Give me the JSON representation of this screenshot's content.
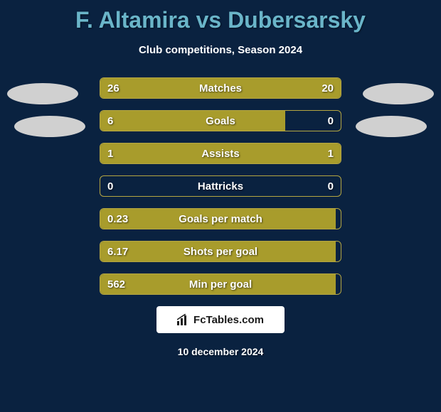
{
  "title": "F. Altamira vs Dubersarsky",
  "subtitle": "Club competitions, Season 2024",
  "colors": {
    "background": "#0a2240",
    "title_color": "#6ab5c9",
    "bar_fill": "#a89c2c",
    "bar_border": "#b5a642",
    "ellipse": "#d0d0d0",
    "text": "#ffffff"
  },
  "stats": [
    {
      "label": "Matches",
      "left_value": "26",
      "right_value": "20",
      "left_pct": 56.5,
      "right_pct": 43.5
    },
    {
      "label": "Goals",
      "left_value": "6",
      "right_value": "0",
      "left_pct": 77,
      "right_pct": 0
    },
    {
      "label": "Assists",
      "left_value": "1",
      "right_value": "1",
      "left_pct": 50,
      "right_pct": 50
    },
    {
      "label": "Hattricks",
      "left_value": "0",
      "right_value": "0",
      "left_pct": 0,
      "right_pct": 0
    },
    {
      "label": "Goals per match",
      "left_value": "0.23",
      "right_value": "",
      "left_pct": 98,
      "right_pct": 0
    },
    {
      "label": "Shots per goal",
      "left_value": "6.17",
      "right_value": "",
      "left_pct": 98,
      "right_pct": 0
    },
    {
      "label": "Min per goal",
      "left_value": "562",
      "right_value": "",
      "left_pct": 98,
      "right_pct": 0
    }
  ],
  "footer_brand": "FcTables.com",
  "footer_date": "10 december 2024"
}
